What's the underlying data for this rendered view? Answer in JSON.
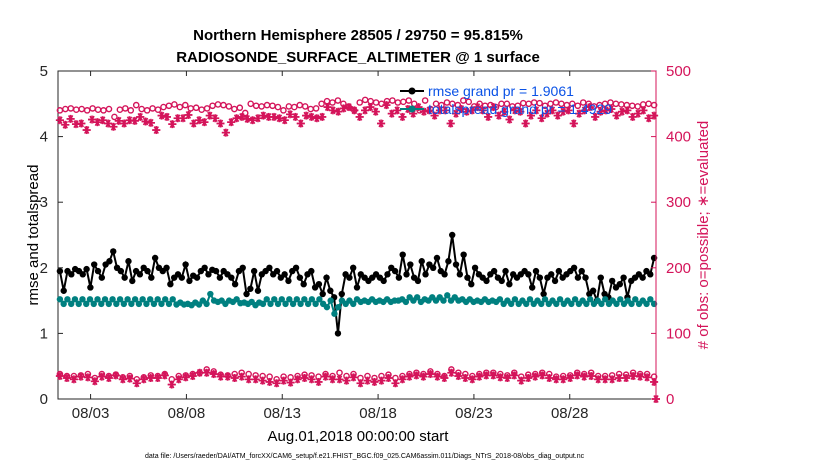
{
  "chart_data": {
    "type": "line",
    "title": "Northern Hemisphere 28505 / 29750 = 95.815%",
    "subtitle": "RADIOSONDE_SURFACE_ALTIMETER @ 1 surface",
    "xlabel": "Aug.01,2018 00:00:00 start",
    "ylabel": "rmse and totalspread",
    "y2label": "# of obs: o=possible; ∗=evaluated",
    "footnote": "data file: /Users/raeder/DAI/ATM_forcXX/CAM6_setup/f.e21.FHIST_BGC.f09_025.CAM6assim.011/Diags_NTrS_2018-08/obs_diag_output.nc",
    "xlim": [
      1.3,
      32.5
    ],
    "ylim": [
      0,
      5
    ],
    "y2lim": [
      0,
      500
    ],
    "xticks": [
      3,
      8,
      13,
      18,
      23,
      28
    ],
    "xtick_labels": [
      "08/03",
      "08/08",
      "08/13",
      "08/18",
      "08/23",
      "08/28"
    ],
    "yticks": [
      0,
      1,
      2,
      3,
      4,
      5
    ],
    "ytick_labels": [
      "0",
      "1",
      "2",
      "3",
      "4",
      "5"
    ],
    "y2ticks": [
      0,
      100,
      200,
      300,
      400,
      500
    ],
    "y2tick_labels": [
      "0",
      "100",
      "200",
      "300",
      "400",
      "500"
    ],
    "legend": [
      "rmse grand pr = 1.9061",
      "totalspread grand pr = 1.4929"
    ],
    "legend_position": "top-right",
    "series": [
      {
        "name": "rmse",
        "axis": "left",
        "color": "#000000",
        "values": [
          1.95,
          1.65,
          1.95,
          1.9,
          1.98,
          1.95,
          1.9,
          1.98,
          1.7,
          2.05,
          1.95,
          1.85,
          2.05,
          2.1,
          2.25,
          2.0,
          1.95,
          1.85,
          2.1,
          1.8,
          1.95,
          1.9,
          2.0,
          1.95,
          1.85,
          2.15,
          2.0,
          1.95,
          2.0,
          1.75,
          1.85,
          1.9,
          1.85,
          2.05,
          1.8,
          1.88,
          1.85,
          1.95,
          2.0,
          1.9,
          1.97,
          1.95,
          1.85,
          1.95,
          1.9,
          1.85,
          1.75,
          1.95,
          2.0,
          1.6,
          1.68,
          1.95,
          1.65,
          1.9,
          1.95,
          2.0,
          1.9,
          1.95,
          1.85,
          1.9,
          1.8,
          1.95,
          2.0,
          1.85,
          1.75,
          1.9,
          1.95,
          1.7,
          1.75,
          1.6,
          1.85,
          1.65,
          1.55,
          1.0,
          1.6,
          1.9,
          1.85,
          2.0,
          1.7,
          1.9,
          1.85,
          1.8,
          1.85,
          1.9,
          1.85,
          1.8,
          1.9,
          2.0,
          1.95,
          1.85,
          2.2,
          1.9,
          2.05,
          1.85,
          1.8,
          2.1,
          1.9,
          2.05,
          2.0,
          2.15,
          1.95,
          1.9,
          2.1,
          2.5,
          2.05,
          1.9,
          2.2,
          1.85,
          1.75,
          2.0,
          1.9,
          1.85,
          1.8,
          1.9,
          1.95,
          1.85,
          1.8,
          1.95,
          1.75,
          1.9,
          1.85,
          1.9,
          1.95,
          1.9,
          1.7,
          1.95,
          1.85,
          1.6,
          1.85,
          1.9,
          1.8,
          1.95,
          1.85,
          1.9,
          1.95,
          2.0,
          1.85,
          1.95,
          1.85,
          1.6,
          1.65,
          1.5,
          1.85,
          1.6,
          1.55,
          1.8,
          1.7,
          1.75,
          1.85,
          1.55,
          1.8,
          1.85,
          1.9,
          1.85,
          1.95,
          1.9,
          2.15
        ]
      },
      {
        "name": "totalspread",
        "axis": "left",
        "color": "#008080",
        "values": [
          1.52,
          1.45,
          1.52,
          1.45,
          1.52,
          1.45,
          1.52,
          1.45,
          1.52,
          1.45,
          1.52,
          1.45,
          1.52,
          1.45,
          1.52,
          1.45,
          1.52,
          1.45,
          1.52,
          1.45,
          1.52,
          1.45,
          1.52,
          1.45,
          1.52,
          1.45,
          1.52,
          1.45,
          1.52,
          1.45,
          1.52,
          1.44,
          1.47,
          1.44,
          1.45,
          1.43,
          1.47,
          1.44,
          1.5,
          1.45,
          1.6,
          1.5,
          1.48,
          1.5,
          1.45,
          1.5,
          1.48,
          1.52,
          1.46,
          1.47,
          1.45,
          1.48,
          1.43,
          1.47,
          1.45,
          1.52,
          1.45,
          1.52,
          1.45,
          1.52,
          1.45,
          1.52,
          1.45,
          1.52,
          1.45,
          1.52,
          1.45,
          1.52,
          1.45,
          1.52,
          1.45,
          1.4,
          1.5,
          1.3,
          1.4,
          1.5,
          1.45,
          1.5,
          1.45,
          1.52,
          1.48,
          1.5,
          1.48,
          1.52,
          1.48,
          1.5,
          1.48,
          1.52,
          1.48,
          1.5,
          1.5,
          1.52,
          1.48,
          1.55,
          1.5,
          1.55,
          1.48,
          1.52,
          1.5,
          1.55,
          1.5,
          1.55,
          1.5,
          1.58,
          1.5,
          1.55,
          1.5,
          1.52,
          1.48,
          1.52,
          1.48,
          1.5,
          1.48,
          1.52,
          1.48,
          1.5,
          1.48,
          1.52,
          1.45,
          1.5,
          1.45,
          1.52,
          1.45,
          1.5,
          1.45,
          1.52,
          1.45,
          1.5,
          1.45,
          1.52,
          1.45,
          1.5,
          1.45,
          1.52,
          1.45,
          1.5,
          1.45,
          1.52,
          1.45,
          1.5,
          1.45,
          1.52,
          1.45,
          1.5,
          1.45,
          1.52,
          1.45,
          1.5,
          1.45,
          1.52,
          1.45,
          1.5,
          1.45,
          1.52,
          1.45,
          1.5,
          1.45,
          1.52,
          1.45
        ]
      },
      {
        "name": "possible obs",
        "axis": "right",
        "marker": "o",
        "color": "#d4145a",
        "values": [
          440,
          442,
          443,
          441,
          442,
          440,
          443,
          441,
          440,
          442,
          430,
          441,
          443,
          440,
          448,
          442,
          440,
          443,
          441,
          445,
          447,
          449,
          445,
          448,
          443,
          444,
          441,
          443,
          447,
          449,
          448,
          446,
          442,
          444,
          436,
          450,
          447,
          446,
          448,
          447,
          445,
          440,
          446,
          445,
          448,
          446,
          442,
          443,
          450,
          454,
          452,
          455,
          450,
          445,
          440,
          452,
          456,
          454,
          452,
          450,
          454,
          455,
          452,
          453,
          455,
          450,
          440,
          455,
          442,
          450,
          448,
          452,
          450,
          448,
          455,
          453,
          446,
          450,
          447,
          448,
          445,
          450,
          450,
          446,
          447,
          451,
          450,
          452,
          451,
          447,
          450,
          452,
          450,
          448,
          450,
          447,
          452,
          450,
          446,
          448,
          450,
          452,
          450,
          449,
          448,
          447,
          446,
          449,
          450,
          448
        ]
      },
      {
        "name": "evaluated obs",
        "axis": "right",
        "marker": "*",
        "color": "#d4145a",
        "values": [
          425,
          418,
          427,
          419,
          420,
          410,
          426,
          422,
          425,
          420,
          415,
          424,
          420,
          425,
          424,
          430,
          423,
          421,
          410,
          432,
          430,
          419,
          428,
          428,
          433,
          420,
          425,
          422,
          432,
          428,
          420,
          406,
          422,
          428,
          430,
          427,
          425,
          428,
          432,
          430,
          430,
          428,
          425,
          434,
          430,
          420,
          432,
          430,
          428,
          430,
          445,
          440,
          438,
          443,
          445,
          440,
          430,
          440,
          445,
          438,
          420,
          448,
          435,
          440,
          430,
          442,
          435,
          445,
          438,
          440,
          432,
          440,
          440,
          420,
          435,
          442,
          438,
          440,
          445,
          440,
          430,
          445,
          432,
          438,
          426,
          440,
          438,
          420,
          432,
          440,
          428,
          435,
          440,
          432,
          438,
          440,
          420,
          435,
          440,
          445,
          430,
          438,
          440,
          442,
          432,
          438,
          440,
          430,
          435,
          440,
          428,
          432
        ]
      },
      {
        "name": "possible obs (low)",
        "axis": "right",
        "marker": "o",
        "color": "#d4145a",
        "values": [
          38,
          35,
          35,
          36,
          38,
          32,
          38,
          35,
          37,
          33,
          35,
          30,
          33,
          36,
          35,
          38,
          30,
          35,
          36,
          38,
          40,
          45,
          42,
          37,
          36,
          38,
          40,
          38,
          36,
          35,
          34,
          30,
          34,
          33,
          35,
          37,
          36,
          34,
          38,
          35,
          40,
          35,
          38,
          32,
          35,
          32,
          35,
          37,
          32,
          35,
          38,
          40,
          38,
          42,
          38,
          35,
          45,
          40,
          38,
          35,
          38,
          40,
          40,
          38,
          36,
          40,
          34,
          37,
          38,
          40,
          38,
          34,
          35,
          36,
          40,
          38,
          40,
          35,
          35,
          36,
          38,
          37,
          40,
          38,
          38,
          34
        ]
      },
      {
        "name": "evaluated obs (low)",
        "axis": "right",
        "marker": "*",
        "color": "#d4145a",
        "values": [
          35,
          32,
          30,
          34,
          33,
          27,
          34,
          32,
          36,
          30,
          31,
          24,
          30,
          32,
          32,
          36,
          22,
          30,
          33,
          35,
          40,
          40,
          38,
          34,
          34,
          32,
          34,
          30,
          30,
          28,
          26,
          24,
          28,
          25,
          30,
          32,
          30,
          26,
          34,
          30,
          30,
          28,
          33,
          24,
          28,
          26,
          28,
          32,
          24,
          30,
          34,
          36,
          34,
          38,
          34,
          32,
          40,
          35,
          32,
          30,
          34,
          36,
          36,
          33,
          32,
          36,
          28,
          32,
          34,
          36,
          32,
          30,
          30,
          32,
          36,
          34,
          35,
          30,
          30,
          30,
          32,
          32,
          35,
          34,
          33,
          26
        ]
      },
      {
        "name": "end marker",
        "axis": "right",
        "marker": "*",
        "color": "#d4145a",
        "x": 32.5,
        "values": [
          0
        ]
      }
    ]
  }
}
